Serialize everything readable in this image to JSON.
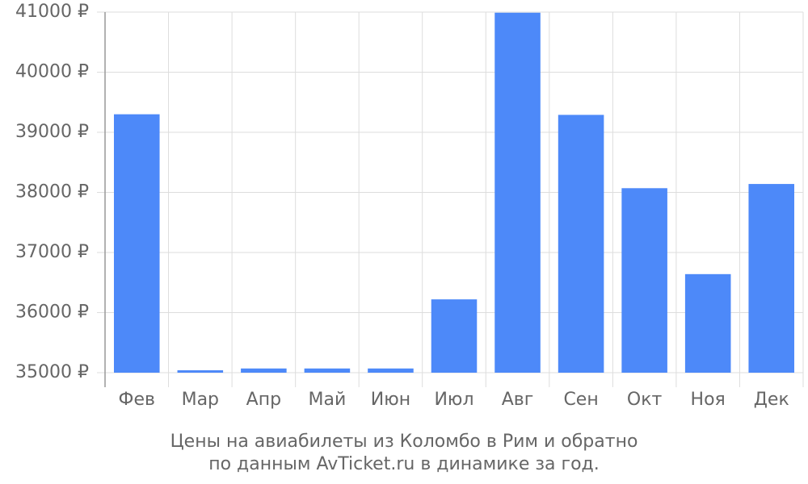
{
  "chart_data": {
    "type": "bar",
    "title": "Цены на авиабилеты из Коломбо в Рим и обратно",
    "subtitle": "по данным AvTicket.ru в динамике за год.",
    "categories": [
      "Фев",
      "Мар",
      "Апр",
      "Май",
      "Июн",
      "Июл",
      "Авг",
      "Сен",
      "Окт",
      "Ноя",
      "Дек"
    ],
    "values": [
      39300,
      35040,
      35070,
      35070,
      35070,
      36220,
      40990,
      39290,
      38070,
      36640,
      38140
    ],
    "color": "#4d89f9",
    "ylim": [
      35000,
      41000
    ],
    "yticks": [
      {
        "value": 35000,
        "label": "35000 ₽"
      },
      {
        "value": 36000,
        "label": "36000 ₽"
      },
      {
        "value": 37000,
        "label": "37000 ₽"
      },
      {
        "value": 38000,
        "label": "38000 ₽"
      },
      {
        "value": 39000,
        "label": "39000 ₽"
      },
      {
        "value": 40000,
        "label": "40000 ₽"
      },
      {
        "value": 41000,
        "label": "41000 ₽"
      }
    ],
    "grid": true
  }
}
